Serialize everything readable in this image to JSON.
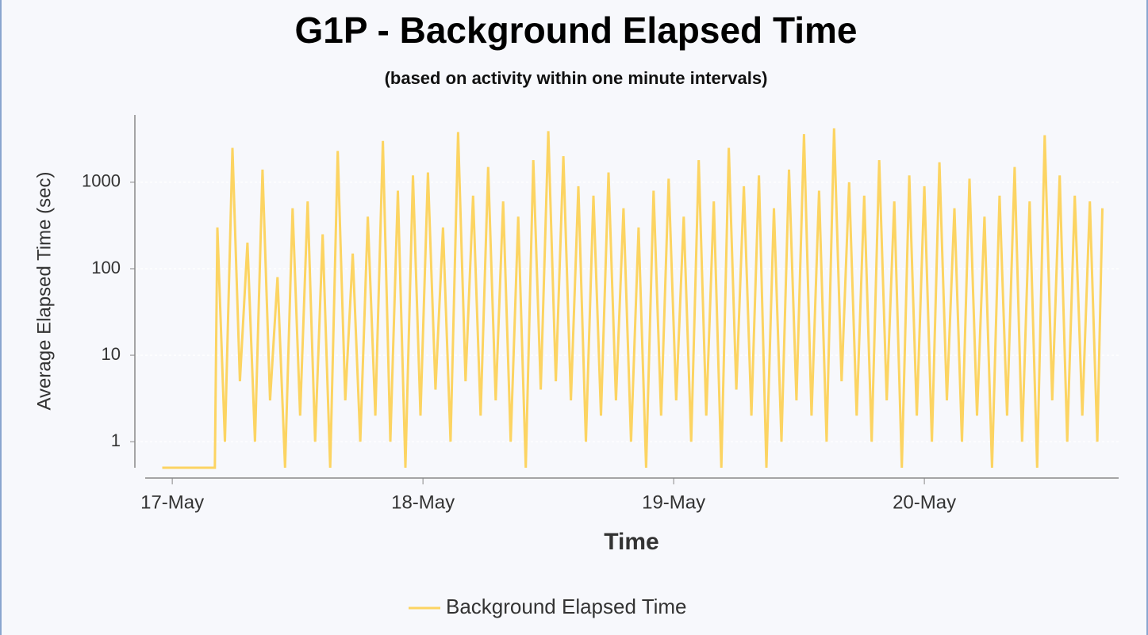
{
  "chart_data": {
    "type": "line",
    "title": "G1P - Background Elapsed Time",
    "subtitle": "(based on activity within one minute intervals)",
    "x_label": "Time",
    "y_label": "Average Elapsed Time (sec)",
    "ylog": true,
    "grid": true,
    "legend": "bottom",
    "xlim": [
      16.892,
      20.775
    ],
    "xticks": [
      {
        "value": 17,
        "label": "17-May"
      },
      {
        "value": 18,
        "label": "18-May"
      },
      {
        "value": 19,
        "label": "19-May"
      },
      {
        "value": 20,
        "label": "20-May"
      }
    ],
    "ylim": [
      0.5,
      6000
    ],
    "yticks": [
      1,
      10,
      100,
      1000
    ],
    "x": [
      16.96,
      17.17,
      17.18,
      17.21,
      17.24,
      17.27,
      17.3,
      17.33,
      17.36,
      17.39,
      17.42,
      17.45,
      17.48,
      17.51,
      17.54,
      17.57,
      17.6,
      17.63,
      17.66,
      17.69,
      17.72,
      17.75,
      17.78,
      17.81,
      17.84,
      17.87,
      17.9,
      17.93,
      17.96,
      17.99,
      18.02,
      18.05,
      18.08,
      18.11,
      18.14,
      18.17,
      18.2,
      18.23,
      18.26,
      18.29,
      18.32,
      18.35,
      18.38,
      18.41,
      18.44,
      18.47,
      18.5,
      18.53,
      18.56,
      18.59,
      18.62,
      18.65,
      18.68,
      18.71,
      18.74,
      18.77,
      18.8,
      18.83,
      18.86,
      18.89,
      18.92,
      18.95,
      18.98,
      19.01,
      19.04,
      19.07,
      19.1,
      19.13,
      19.16,
      19.19,
      19.22,
      19.25,
      19.28,
      19.31,
      19.34,
      19.37,
      19.4,
      19.43,
      19.46,
      19.49,
      19.52,
      19.55,
      19.58,
      19.61,
      19.64,
      19.67,
      19.7,
      19.73,
      19.76,
      19.79,
      19.82,
      19.85,
      19.88,
      19.91,
      19.94,
      19.97,
      20.0,
      20.03,
      20.06,
      20.09,
      20.12,
      20.15,
      20.18,
      20.21,
      20.24,
      20.27,
      20.3,
      20.33,
      20.36,
      20.39,
      20.42,
      20.45,
      20.48,
      20.51,
      20.54,
      20.57,
      20.6,
      20.63,
      20.66,
      20.69,
      20.71
    ],
    "series": [
      {
        "name": "Background Elapsed Time",
        "color": "#fcd462",
        "values": [
          0.5,
          0.5,
          300,
          1,
          2500,
          5,
          200,
          1,
          1400,
          3,
          80,
          0.5,
          500,
          2,
          600,
          1,
          250,
          0.5,
          2300,
          3,
          150,
          1,
          400,
          2,
          3000,
          1,
          800,
          0.5,
          1200,
          2,
          1300,
          4,
          300,
          1,
          3800,
          5,
          700,
          2,
          1500,
          3,
          600,
          1,
          400,
          0.5,
          1800,
          4,
          3900,
          5,
          2000,
          3,
          900,
          1,
          700,
          2,
          1300,
          3,
          500,
          1,
          300,
          0.5,
          800,
          2,
          1100,
          3,
          400,
          1,
          1800,
          2,
          600,
          0.5,
          2500,
          4,
          900,
          2,
          1200,
          0.5,
          500,
          1,
          1400,
          3,
          3600,
          2,
          800,
          1,
          4200,
          5,
          1000,
          2,
          700,
          1,
          1800,
          3,
          600,
          0.5,
          1200,
          2,
          900,
          1,
          1700,
          3,
          500,
          1,
          1100,
          2,
          400,
          0.5,
          700,
          2,
          1500,
          1,
          600,
          0.5,
          3500,
          3,
          1200,
          1,
          700,
          2,
          600,
          1,
          500
        ]
      }
    ]
  }
}
